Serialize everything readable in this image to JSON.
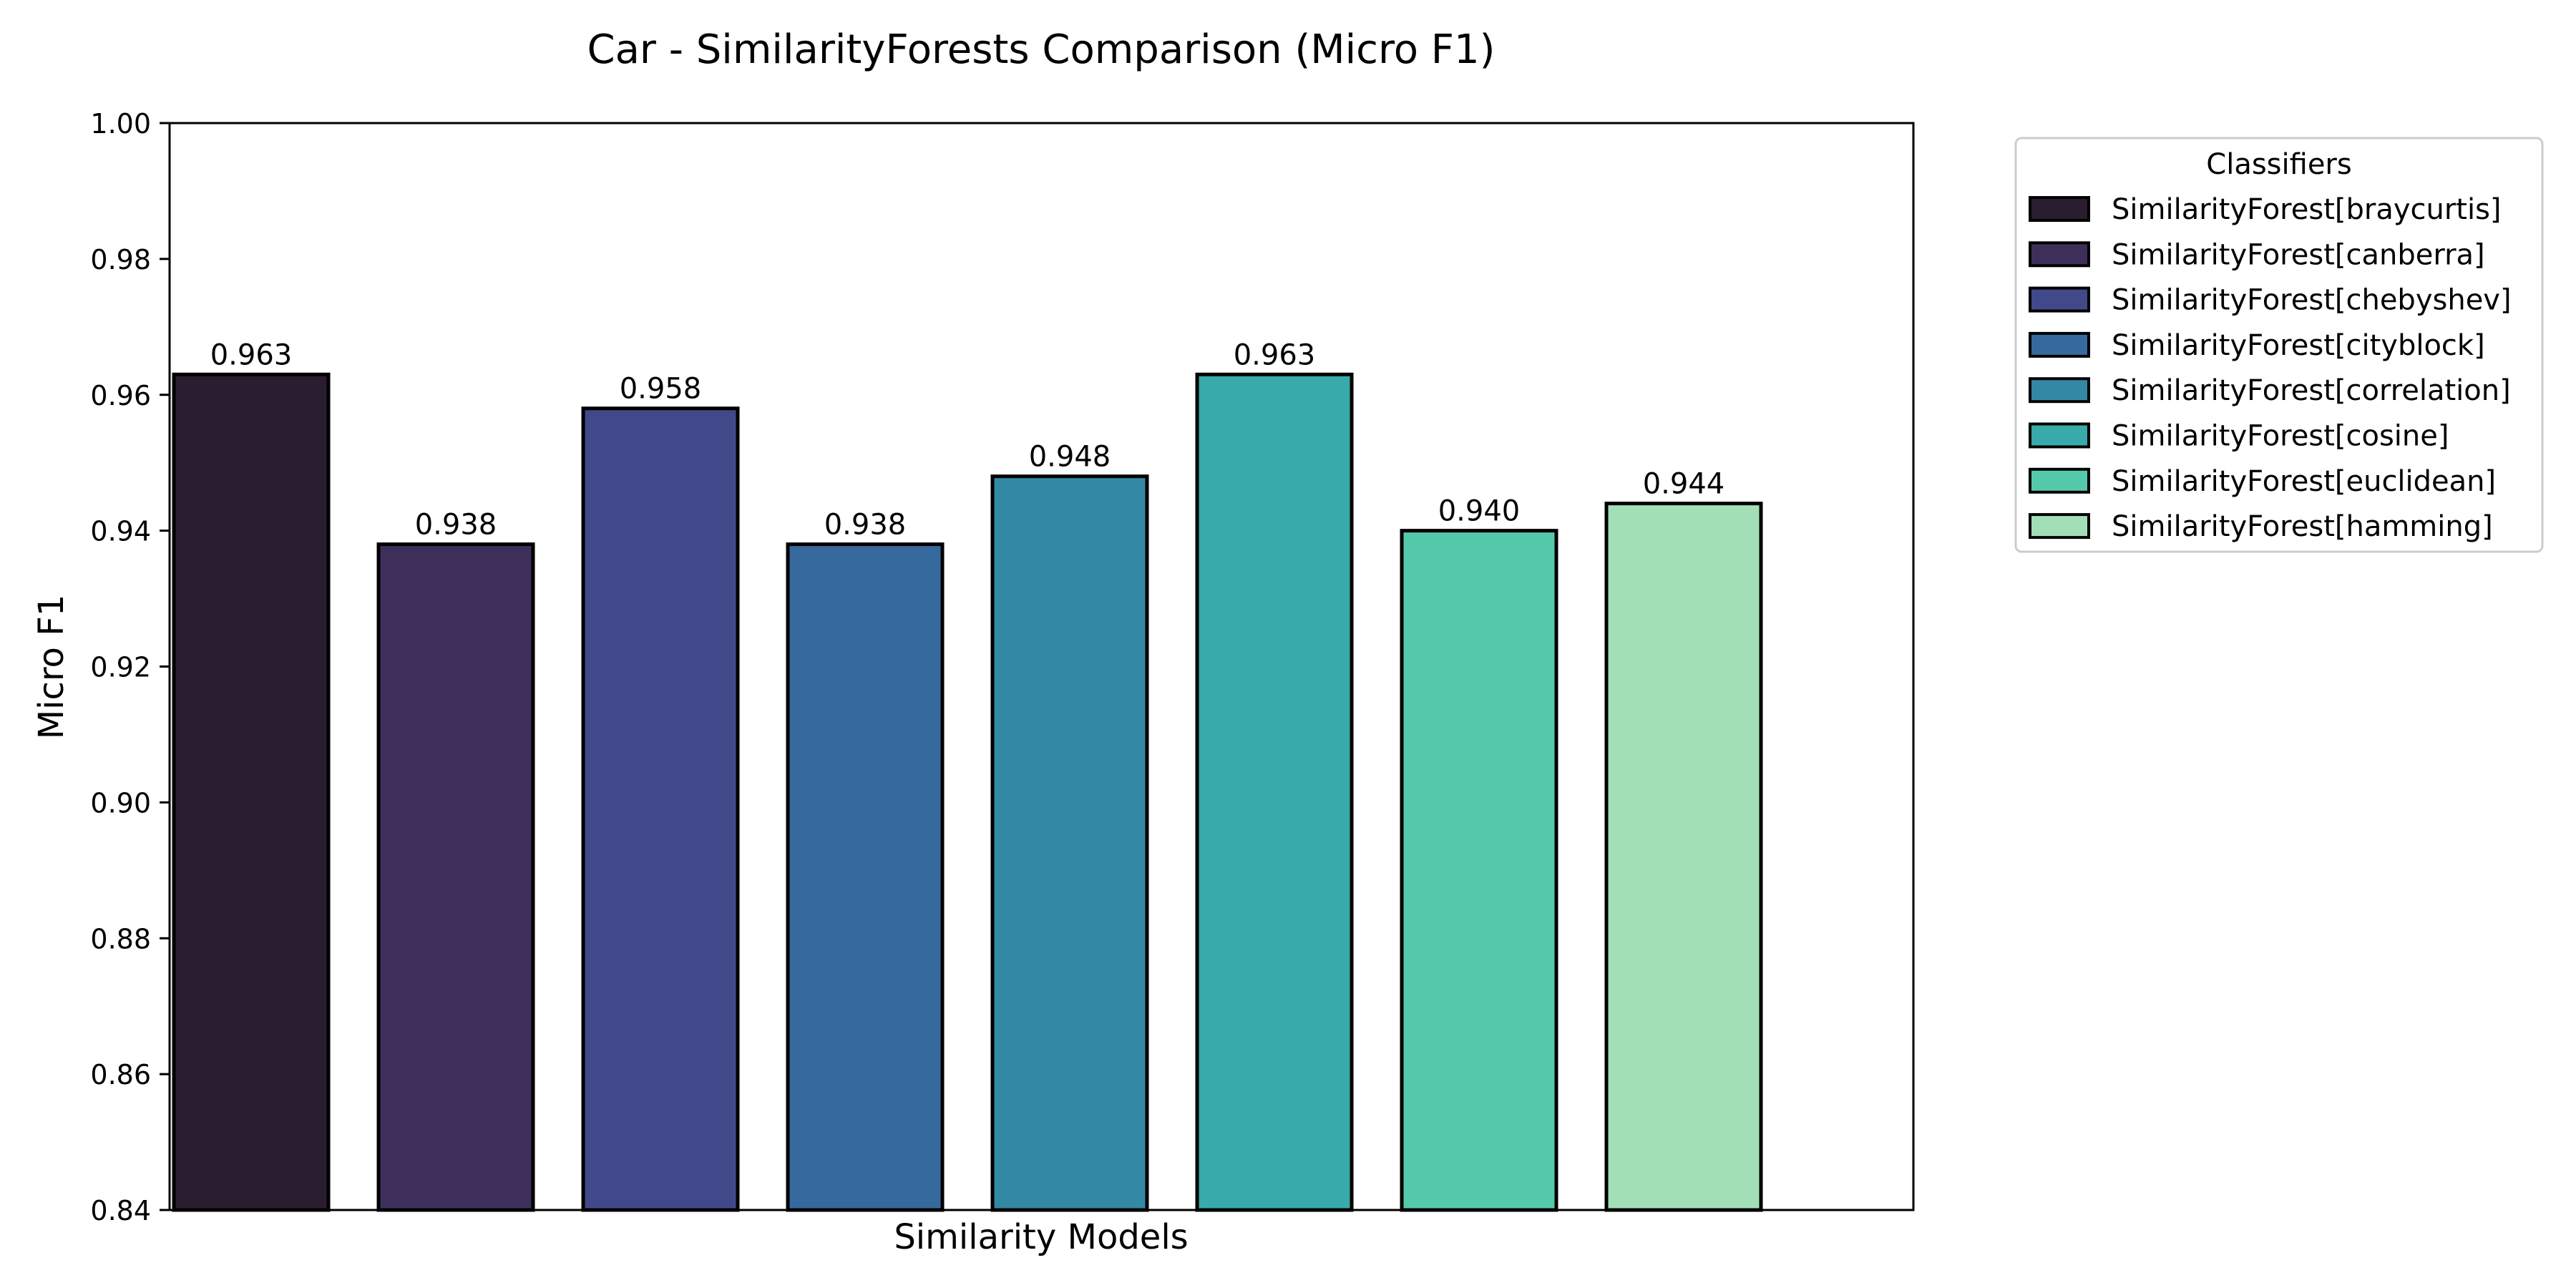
{
  "chart_data": {
    "type": "bar",
    "title": "Car - SimilarityForests Comparison (Micro F1)",
    "xlabel": "Similarity Models",
    "ylabel": "Micro F1",
    "ylim": [
      0.84,
      1.0
    ],
    "yticks": [
      "0.84",
      "0.86",
      "0.88",
      "0.90",
      "0.92",
      "0.94",
      "0.96",
      "0.98",
      "1.00"
    ],
    "grid": false,
    "legend": {
      "title": "Classifiers",
      "placement": "outside-top-right"
    },
    "series": [
      {
        "name": "SimilarityForest[braycurtis]",
        "value": 0.963,
        "label": "0.963",
        "color": "#2a1d30"
      },
      {
        "name": "SimilarityForest[canberra]",
        "value": 0.938,
        "label": "0.938",
        "color": "#3d2f5a"
      },
      {
        "name": "SimilarityForest[chebyshev]",
        "value": 0.958,
        "label": "0.958",
        "color": "#41498a"
      },
      {
        "name": "SimilarityForest[cityblock]",
        "value": 0.938,
        "label": "0.938",
        "color": "#366a9e"
      },
      {
        "name": "SimilarityForest[correlation]",
        "value": 0.948,
        "label": "0.948",
        "color": "#3389a4"
      },
      {
        "name": "SimilarityForest[cosine]",
        "value": 0.963,
        "label": "0.963",
        "color": "#38aaa9"
      },
      {
        "name": "SimilarityForest[euclidean]",
        "value": 0.94,
        "label": "0.940",
        "color": "#55c9ab"
      },
      {
        "name": "SimilarityForest[hamming]",
        "value": 0.944,
        "label": "0.944",
        "color": "#a2dfb7"
      }
    ]
  }
}
